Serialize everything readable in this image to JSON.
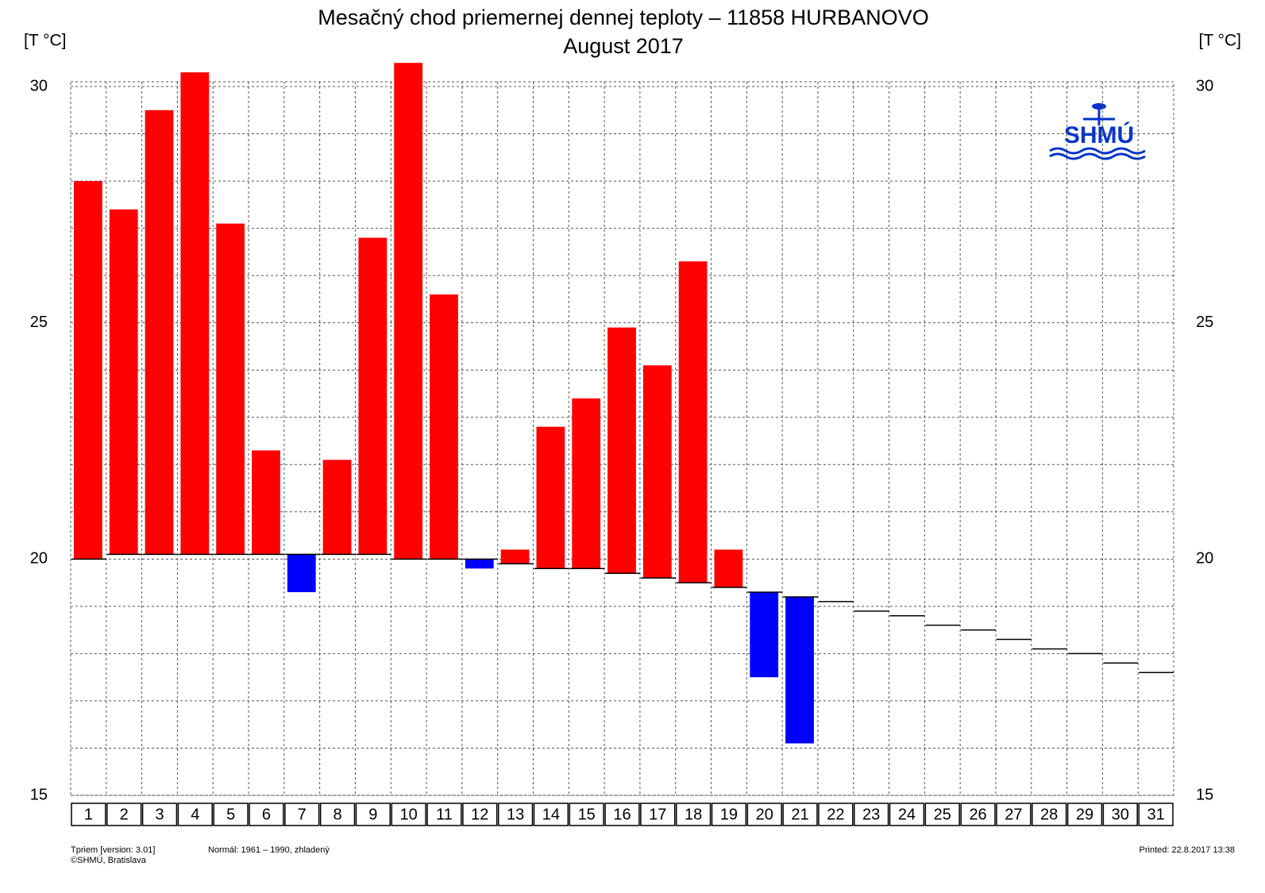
{
  "chart_data": {
    "type": "deviation-bar",
    "title": "Mesačný chod priemernej dennej teploty – 11858 HURBANOVO",
    "subtitle": "August 2017",
    "y_label": "[T °C]",
    "y2_label": "[T °C]",
    "logo": "SHMÚ",
    "footer_version": "Tpriem [version: 3.01]",
    "footer_copyright": "©SHMÚ, Bratislava",
    "footer_normal": "Normál: 1961 – 1990, zhladený",
    "footer_printed": "Printed: 22.8.2017 13:38",
    "categories": [
      "1",
      "2",
      "3",
      "4",
      "5",
      "6",
      "7",
      "8",
      "9",
      "10",
      "11",
      "12",
      "13",
      "14",
      "15",
      "16",
      "17",
      "18",
      "19",
      "20",
      "21",
      "22",
      "23",
      "24",
      "25",
      "26",
      "27",
      "28",
      "29",
      "30",
      "31"
    ],
    "values": [
      28.0,
      27.4,
      29.5,
      30.3,
      27.1,
      22.3,
      19.3,
      22.1,
      26.8,
      30.5,
      25.6,
      19.8,
      20.2,
      22.8,
      23.4,
      24.9,
      24.1,
      26.3,
      20.2,
      17.5,
      16.1,
      null,
      null,
      null,
      null,
      null,
      null,
      null,
      null,
      null,
      null
    ],
    "normal": [
      20.0,
      20.1,
      20.1,
      20.1,
      20.1,
      20.1,
      20.1,
      20.1,
      20.1,
      20.0,
      20.0,
      20.0,
      19.9,
      19.8,
      19.8,
      19.7,
      19.6,
      19.5,
      19.4,
      19.3,
      19.2,
      19.1,
      18.9,
      18.8,
      18.6,
      18.5,
      18.3,
      18.1,
      18.0,
      17.8,
      17.6
    ],
    "above_color": "#ff0000",
    "below_color": "#0000ff",
    "ylim": [
      15,
      30
    ],
    "yticks": [
      15,
      20,
      25,
      30
    ],
    "yminor": [
      16,
      17,
      18,
      19,
      21,
      22,
      23,
      24,
      26,
      27,
      28,
      29
    ],
    "grid": true
  }
}
